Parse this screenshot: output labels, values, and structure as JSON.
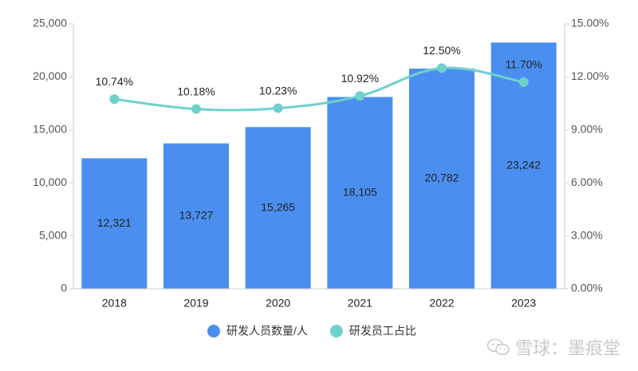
{
  "chart_data": {
    "type": "bar",
    "categories": [
      "2018",
      "2019",
      "2020",
      "2021",
      "2022",
      "2023"
    ],
    "series": [
      {
        "name": "研发人员数量/人",
        "type": "bar",
        "axis": "left",
        "color": "#4a8ff0",
        "values": [
          12321,
          13727,
          15265,
          18105,
          20782,
          23242
        ],
        "labels": [
          "12,321",
          "13,727",
          "15,265",
          "18,105",
          "20,782",
          "23,242"
        ]
      },
      {
        "name": "研发员工占比",
        "type": "line",
        "axis": "right",
        "color": "#6fd0cc",
        "values": [
          10.74,
          10.18,
          10.23,
          10.92,
          12.5,
          11.7
        ],
        "labels": [
          "10.74%",
          "10.18%",
          "10.23%",
          "10.92%",
          "12.50%",
          "11.70%"
        ]
      }
    ],
    "y_left": {
      "range": [
        0,
        25000
      ],
      "ticks": [
        0,
        5000,
        10000,
        15000,
        20000,
        25000
      ],
      "tick_labels": [
        "0",
        "5,000",
        "10,000",
        "15,000",
        "20,000",
        "25,000"
      ]
    },
    "y_right": {
      "range": [
        0,
        15
      ],
      "ticks": [
        0,
        3,
        6,
        9,
        12,
        15
      ],
      "tick_labels": [
        "0.00%",
        "3.00%",
        "6.00%",
        "9.00%",
        "12.00%",
        "15.00%"
      ]
    },
    "title": "",
    "xlabel": "",
    "ylabel": "",
    "grid": false,
    "legend_position": "bottom"
  },
  "watermark": {
    "text": "雪球：墨痕堂",
    "icon": "wechat-icon"
  }
}
